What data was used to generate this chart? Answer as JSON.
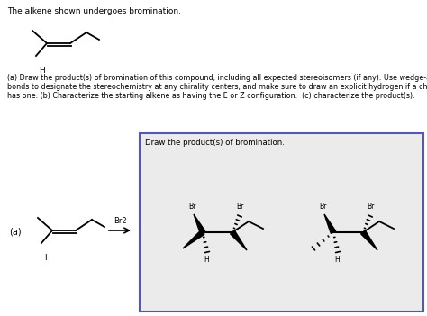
{
  "title_text": "The alkene shown undergoes bromination.",
  "question_text_1": "(a) Draw the product(s) of bromination of this compound, including all expected stereoisomers (if any). Use wedge-and-dash",
  "question_text_2": "bonds to designate the stereochemistry at any chirality centers, and make sure to draw an explicit hydrogen if a chirality center",
  "question_text_3": "has one. (b) Characterize the starting alkene as having the E or Z configuration.  (c) characterize the product(s).",
  "box_label": "Draw the product(s) of bromination.",
  "arrow_label": "Br2",
  "label_a": "(a)",
  "bg_color": "#ebebeb",
  "white": "#ffffff",
  "black": "#000000",
  "box_border": "#5555bb"
}
